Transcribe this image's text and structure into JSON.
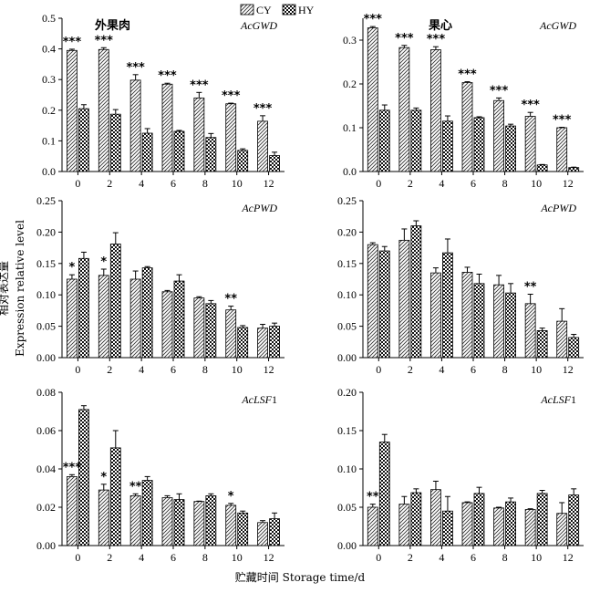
{
  "figure": {
    "ylabel_cn": "相对表达量",
    "ylabel_en": "Expression relative level",
    "xlabel": "贮藏时间 Storage time/d",
    "legend": [
      "CY",
      "HY"
    ],
    "legend_pattern": [
      "diagonal-hatch",
      "checker"
    ],
    "tissues": [
      "外果肉",
      "果心"
    ]
  },
  "chart_data": [
    {
      "type": "bar",
      "gene": "AcGWD",
      "tissue": "外果肉",
      "categories": [
        "0",
        "2",
        "4",
        "6",
        "8",
        "10",
        "12"
      ],
      "ylim": [
        0,
        0.5
      ],
      "yticks": [
        "0.0",
        "0.1",
        "0.2",
        "0.3",
        "0.4",
        "0.5"
      ],
      "series": [
        {
          "name": "CY",
          "values": [
            0.395,
            0.398,
            0.298,
            0.285,
            0.24,
            0.221,
            0.164
          ],
          "errors": [
            0.004,
            0.006,
            0.018,
            0.003,
            0.018,
            0.002,
            0.018
          ]
        },
        {
          "name": "HY",
          "values": [
            0.205,
            0.187,
            0.125,
            0.131,
            0.111,
            0.069,
            0.052
          ],
          "errors": [
            0.013,
            0.015,
            0.015,
            0.003,
            0.013,
            0.005,
            0.011
          ]
        }
      ],
      "significance": [
        "***",
        "***",
        "***",
        "***",
        "***",
        "***",
        "***"
      ]
    },
    {
      "type": "bar",
      "gene": "AcGWD",
      "tissue": "果心",
      "categories": [
        "0",
        "2",
        "4",
        "6",
        "8",
        "10",
        "12"
      ],
      "ylim": [
        0,
        0.35
      ],
      "yticks": [
        "0.0",
        "0.1",
        "0.2",
        "0.3"
      ],
      "series": [
        {
          "name": "CY",
          "values": [
            0.328,
            0.283,
            0.278,
            0.203,
            0.162,
            0.126,
            0.1
          ],
          "errors": [
            0.003,
            0.005,
            0.007,
            0.002,
            0.006,
            0.009,
            0.001
          ]
        },
        {
          "name": "HY",
          "values": [
            0.14,
            0.14,
            0.115,
            0.123,
            0.104,
            0.015,
            0.009
          ],
          "errors": [
            0.012,
            0.005,
            0.012,
            0.002,
            0.004,
            0.001,
            0.001
          ]
        }
      ],
      "significance": [
        "***",
        "***",
        "***",
        "***",
        "***",
        "***",
        "***"
      ]
    },
    {
      "type": "bar",
      "gene": "AcPWD",
      "categories": [
        "0",
        "2",
        "4",
        "6",
        "8",
        "10",
        "12"
      ],
      "ylim": [
        0,
        0.25
      ],
      "yticks": [
        "0.00",
        "0.05",
        "0.10",
        "0.15",
        "0.20",
        "0.25"
      ],
      "series": [
        {
          "name": "CY",
          "values": [
            0.125,
            0.131,
            0.125,
            0.105,
            0.095,
            0.076,
            0.047
          ],
          "errors": [
            0.007,
            0.01,
            0.013,
            0.002,
            0.002,
            0.006,
            0.006
          ]
        },
        {
          "name": "HY",
          "values": [
            0.158,
            0.181,
            0.143,
            0.122,
            0.086,
            0.048,
            0.05
          ],
          "errors": [
            0.01,
            0.018,
            0.002,
            0.01,
            0.005,
            0.003,
            0.005
          ]
        }
      ],
      "significance": [
        "*",
        "*",
        "",
        "",
        "",
        "**",
        ""
      ]
    },
    {
      "type": "bar",
      "gene": "AcPWD",
      "categories": [
        "0",
        "2",
        "4",
        "6",
        "8",
        "10",
        "12"
      ],
      "ylim": [
        0,
        0.25
      ],
      "yticks": [
        "0.00",
        "0.05",
        "0.10",
        "0.15",
        "0.20",
        "0.25"
      ],
      "series": [
        {
          "name": "CY",
          "values": [
            0.18,
            0.187,
            0.135,
            0.136,
            0.116,
            0.086,
            0.058
          ],
          "errors": [
            0.003,
            0.018,
            0.008,
            0.008,
            0.015,
            0.015,
            0.02
          ]
        },
        {
          "name": "HY",
          "values": [
            0.17,
            0.21,
            0.167,
            0.118,
            0.103,
            0.043,
            0.032
          ],
          "errors": [
            0.007,
            0.008,
            0.022,
            0.015,
            0.015,
            0.004,
            0.005
          ]
        }
      ],
      "significance": [
        "",
        "",
        "",
        "",
        "",
        "**",
        ""
      ]
    },
    {
      "type": "bar",
      "gene": "AcLSF1",
      "categories": [
        "0",
        "2",
        "4",
        "6",
        "8",
        "10",
        "12"
      ],
      "ylim": [
        0,
        0.08
      ],
      "yticks": [
        "0.00",
        "0.02",
        "0.04",
        "0.06",
        "0.08"
      ],
      "series": [
        {
          "name": "CY",
          "values": [
            0.036,
            0.029,
            0.026,
            0.025,
            0.023,
            0.021,
            0.012
          ],
          "errors": [
            0.001,
            0.003,
            0.001,
            0.001,
            0.0002,
            0.001,
            0.001
          ]
        },
        {
          "name": "HY",
          "values": [
            0.071,
            0.051,
            0.034,
            0.024,
            0.026,
            0.017,
            0.014
          ],
          "errors": [
            0.002,
            0.009,
            0.002,
            0.003,
            0.001,
            0.001,
            0.003
          ]
        }
      ],
      "significance": [
        "***",
        "*",
        "**",
        "",
        "",
        "*",
        ""
      ]
    },
    {
      "type": "bar",
      "gene": "AcLSF1",
      "categories": [
        "0",
        "2",
        "4",
        "6",
        "8",
        "10",
        "12"
      ],
      "ylim": [
        0,
        0.2
      ],
      "yticks": [
        "0.00",
        "0.05",
        "0.10",
        "0.15",
        "0.20"
      ],
      "series": [
        {
          "name": "CY",
          "values": [
            0.05,
            0.054,
            0.073,
            0.056,
            0.049,
            0.047,
            0.042
          ],
          "errors": [
            0.004,
            0.01,
            0.011,
            0.001,
            0.001,
            0.001,
            0.014
          ]
        },
        {
          "name": "HY",
          "values": [
            0.135,
            0.069,
            0.045,
            0.068,
            0.057,
            0.068,
            0.066
          ],
          "errors": [
            0.01,
            0.005,
            0.019,
            0.008,
            0.005,
            0.004,
            0.008
          ]
        }
      ],
      "significance": [
        "**",
        "",
        "",
        "",
        "",
        "",
        ""
      ]
    }
  ]
}
